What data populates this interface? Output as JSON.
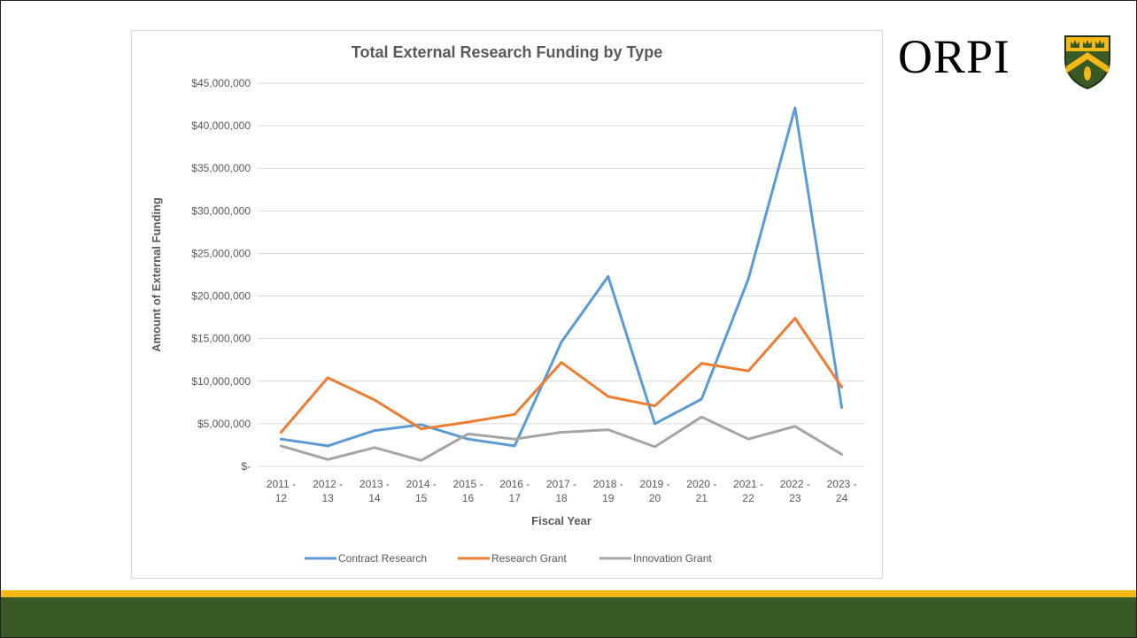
{
  "logo": {
    "text": "ORPI"
  },
  "colors": {
    "gold": "#f6b813",
    "green": "#3a5a25"
  },
  "chart_data": {
    "type": "line",
    "title": "Total External Research Funding by Type",
    "xlabel": "Fiscal Year",
    "ylabel": "Amount of External Funding",
    "categories": [
      [
        "2011 -",
        "12"
      ],
      [
        "2012 -",
        "13"
      ],
      [
        "2013 -",
        "14"
      ],
      [
        "2014 -",
        "15"
      ],
      [
        "2015 -",
        "16"
      ],
      [
        "2016 -",
        "17"
      ],
      [
        "2017 -",
        "18"
      ],
      [
        "2018 -",
        "19"
      ],
      [
        "2019 -",
        "20"
      ],
      [
        "2020 -",
        "21"
      ],
      [
        "2021 -",
        "22"
      ],
      [
        "2022 -",
        "23"
      ],
      [
        "2023 -",
        "24"
      ]
    ],
    "ylim": [
      0,
      45000000
    ],
    "ytick_values": [
      0,
      5000000,
      10000000,
      15000000,
      20000000,
      25000000,
      30000000,
      35000000,
      40000000,
      45000000
    ],
    "ytick_labels": [
      "$-",
      "$5,000,000",
      "$10,000,000",
      "$15,000,000",
      "$20,000,000",
      "$25,000,000",
      "$30,000,000",
      "$35,000,000",
      "$40,000,000",
      "$45,000,000"
    ],
    "grid": true,
    "legend": "bottom",
    "series": [
      {
        "name": "Contract Research",
        "color": "#5b9bd5",
        "values": [
          3200000,
          2400000,
          4200000,
          4900000,
          3200000,
          2400000,
          14600000,
          22300000,
          5000000,
          7900000,
          22000000,
          42100000,
          6900000
        ]
      },
      {
        "name": "Research Grant",
        "color": "#ed7d31",
        "values": [
          4000000,
          10400000,
          7800000,
          4400000,
          5200000,
          6100000,
          12200000,
          8200000,
          7100000,
          12100000,
          11200000,
          17400000,
          9300000
        ]
      },
      {
        "name": "Innovation Grant",
        "color": "#a5a5a5",
        "values": [
          2400000,
          800000,
          2200000,
          700000,
          3800000,
          3200000,
          4000000,
          4300000,
          2300000,
          5800000,
          3200000,
          4700000,
          1400000
        ]
      }
    ]
  }
}
